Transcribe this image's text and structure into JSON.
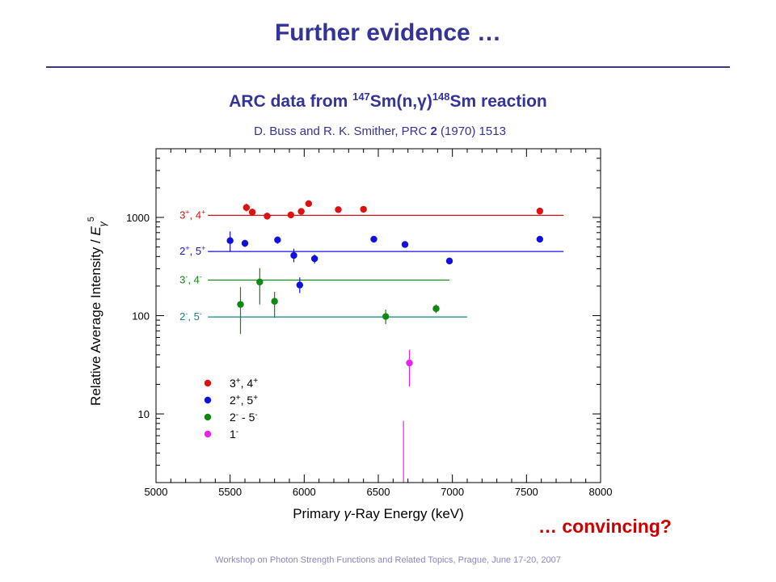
{
  "slide": {
    "title": "Further evidence …",
    "convincing": "… convincing?",
    "footer": "Workshop on Photon Strength Functions and Related Topics, Prague, June 17-20, 2007"
  },
  "chart_heading": {
    "prefix": "ARC data from ",
    "target_mass": "147",
    "target": "Sm(n,",
    "gamma": "γ",
    "close": ")",
    "product_mass": "148",
    "product": "Sm reaction"
  },
  "citation": {
    "authors": "D. Buss and R. K. Smither, PRC ",
    "volume": "2",
    "year_pages": " (1970) 1513"
  },
  "chart_data": {
    "type": "scatter",
    "xlabel": "Primary γ-Ray Energy (keV)",
    "ylabel": "Relative Average Intensity / Eγ5",
    "xlim": [
      5000,
      8000
    ],
    "ylim": [
      2,
      5000
    ],
    "yscale": "log",
    "xticks": [
      5000,
      5500,
      6000,
      6500,
      7000,
      7500,
      8000
    ],
    "yticks": [
      10,
      100,
      1000
    ],
    "ytick_labels": [
      "10",
      "100",
      "1000"
    ],
    "legend_position": "lower-left",
    "series": [
      {
        "name": "3+, 4+",
        "color": "#dd1111",
        "level": 1050,
        "level_x": [
          5350,
          7750
        ],
        "level_label": "3+, 4+",
        "points": [
          [
            5610,
            1260
          ],
          [
            5650,
            1130
          ],
          [
            5750,
            1030
          ],
          [
            5910,
            1060
          ],
          [
            5980,
            1150
          ],
          [
            6030,
            1380
          ],
          [
            6230,
            1200
          ],
          [
            6400,
            1210
          ],
          [
            7590,
            1160
          ]
        ],
        "errors": [
          [
            5610,
            1150,
            1380
          ],
          [
            5650,
            1040,
            1230
          ],
          [
            5750,
            950,
            1120
          ],
          [
            5910,
            990,
            1140
          ],
          [
            5980,
            1070,
            1240
          ],
          [
            6030,
            1290,
            1480
          ],
          [
            6230,
            1120,
            1290
          ],
          [
            6400,
            1140,
            1280
          ],
          [
            7590,
            1090,
            1230
          ]
        ]
      },
      {
        "name": "2+, 5+",
        "color": "#1111dd",
        "level": 450,
        "level_x": [
          5350,
          7750
        ],
        "level_label": "2+, 5+",
        "points": [
          [
            5500,
            580
          ],
          [
            5600,
            545
          ],
          [
            5820,
            590
          ],
          [
            5930,
            410
          ],
          [
            5970,
            205
          ],
          [
            6070,
            380
          ],
          [
            6470,
            600
          ],
          [
            6680,
            530
          ],
          [
            6980,
            360
          ],
          [
            7590,
            600
          ]
        ],
        "errors": [
          [
            5500,
            450,
            720
          ],
          [
            5600,
            500,
            590
          ],
          [
            5820,
            540,
            640
          ],
          [
            5930,
            350,
            480
          ],
          [
            5970,
            170,
            245
          ],
          [
            6070,
            340,
            420
          ],
          [
            6470,
            560,
            640
          ],
          [
            6680,
            495,
            565
          ],
          [
            6980,
            335,
            385
          ],
          [
            7590,
            565,
            635
          ]
        ]
      },
      {
        "name": "2- - 5-",
        "color": "#118811",
        "level": 97,
        "level_x": [
          5350,
          7100
        ],
        "level_label": "2-, 5-",
        "points": [
          [
            5570,
            130
          ],
          [
            5700,
            220
          ],
          [
            5800,
            140
          ],
          [
            6550,
            98
          ],
          [
            6890,
            118
          ]
        ],
        "errors": [
          [
            5570,
            65,
            195
          ],
          [
            5700,
            130,
            305
          ],
          [
            5800,
            95,
            175
          ],
          [
            6550,
            82,
            115
          ],
          [
            6890,
            106,
            130
          ]
        ]
      },
      {
        "name": "1-",
        "color": "#ee22ee",
        "level": 230,
        "level_x": [
          5350,
          6980
        ],
        "level_label": "3-, 4-",
        "points": [
          [
            6710,
            33
          ]
        ],
        "errors": [
          [
            6710,
            19,
            45
          ]
        ],
        "extra_line": {
          "x": 6670,
          "y_from": 8.5,
          "y_to": 2
        }
      }
    ]
  },
  "colors": {
    "title": "#333399",
    "heading": "#333399",
    "convincing": "#cc0000",
    "footer": "#8888bb",
    "level_green": "#118811",
    "level_teal": "#118888"
  }
}
